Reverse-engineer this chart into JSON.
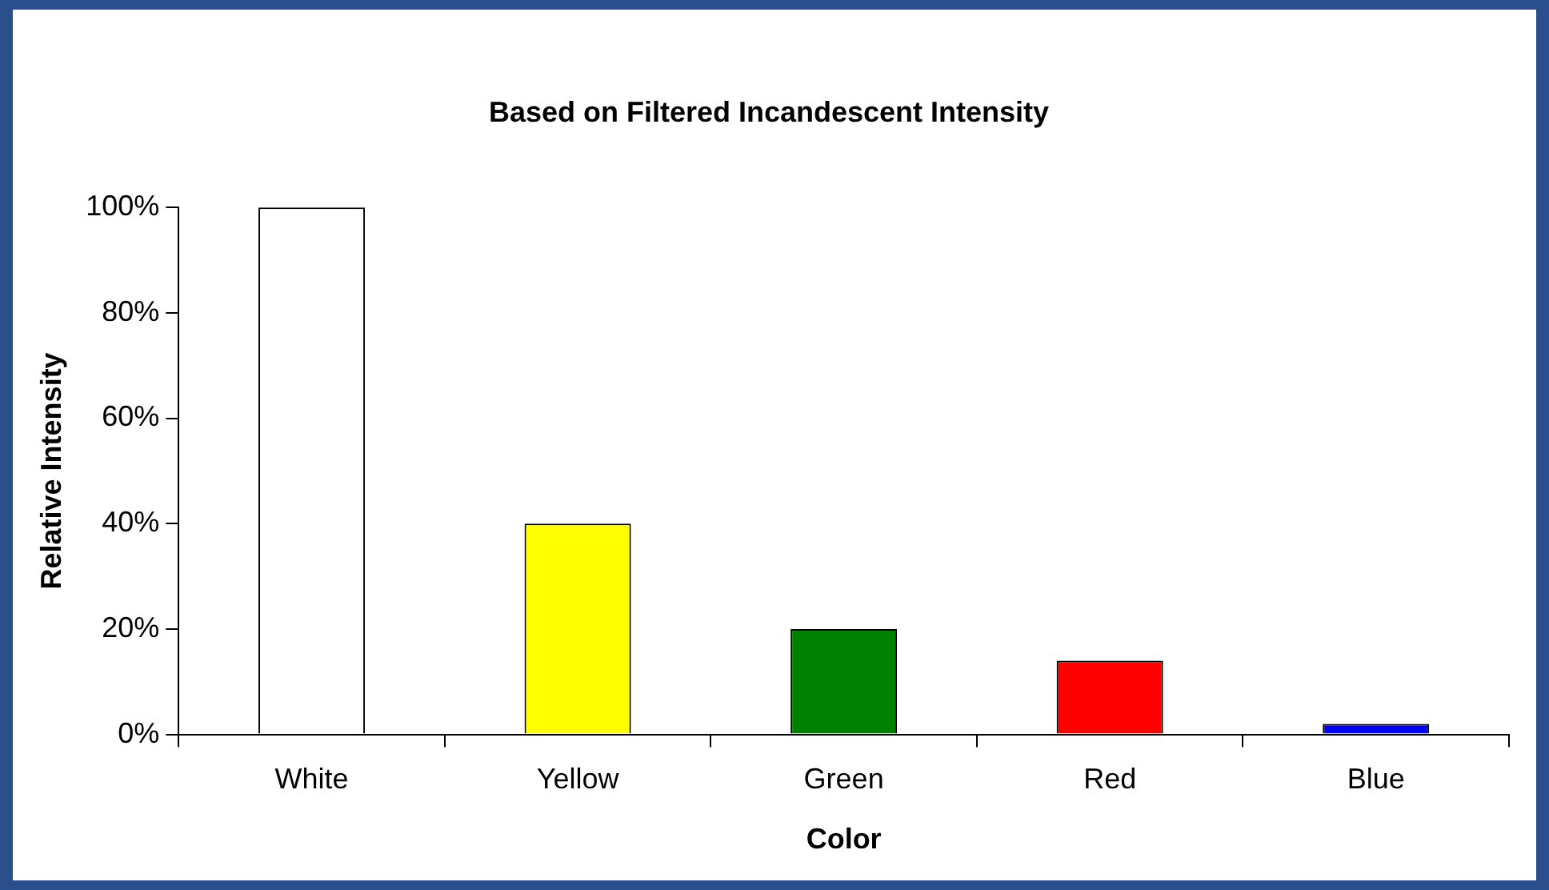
{
  "chart_data": {
    "type": "bar",
    "title": "Based on Filtered Incandescent Intensity",
    "xlabel": "Color",
    "ylabel": "Relative Intensity",
    "categories": [
      "White",
      "Yellow",
      "Green",
      "Red",
      "Blue"
    ],
    "values": [
      100,
      40,
      20,
      14,
      2
    ],
    "colors": [
      "#ffffff",
      "#ffff00",
      "#008000",
      "#ff0000",
      "#0000ff"
    ],
    "ylim": [
      0,
      100
    ],
    "yticks": [
      {
        "value": 0,
        "label": "0%"
      },
      {
        "value": 20,
        "label": "20%"
      },
      {
        "value": 40,
        "label": "40%"
      },
      {
        "value": 60,
        "label": "60%"
      },
      {
        "value": 80,
        "label": "80%"
      },
      {
        "value": 100,
        "label": "100%"
      }
    ]
  }
}
